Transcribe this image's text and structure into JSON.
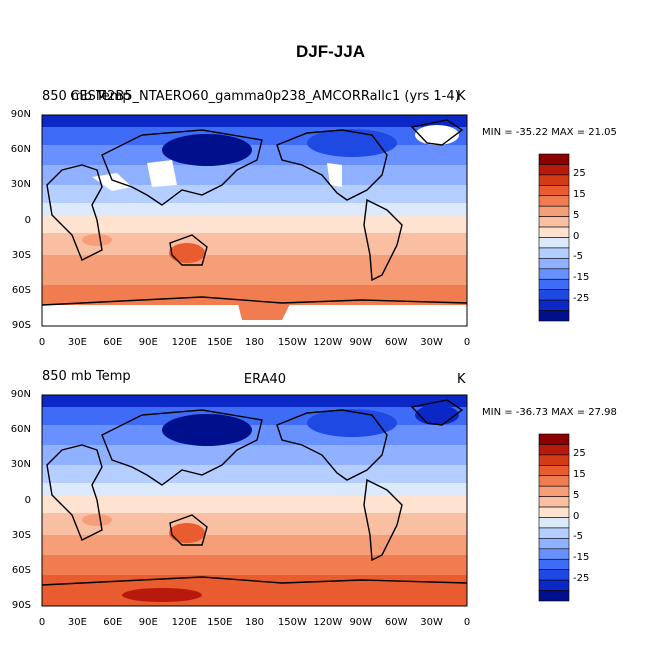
{
  "title": "DJF-JJA",
  "panels": [
    {
      "left_label": "850 mb Temp",
      "center_label": "CESM2B5_NTAERO60_gamma0p238_AMCORRallc1 (yrs 1-4)",
      "units": "K",
      "minmax": "MIN = -35.22  MAX =  21.05"
    },
    {
      "left_label": "850 mb Temp",
      "center_label": "ERA40",
      "units": "K",
      "minmax": "MIN = -36.73  MAX =  27.98"
    }
  ],
  "lon_ticks": [
    "0",
    "30E",
    "60E",
    "90E",
    "120E",
    "150E",
    "180",
    "150W",
    "120W",
    "90W",
    "60W",
    "30W",
    "0"
  ],
  "lat_ticks": [
    "90N",
    "60N",
    "30N",
    "0",
    "30S",
    "60S",
    "90S"
  ],
  "colorbar": {
    "labels": [
      "25",
      "15",
      "5",
      "0",
      "-5",
      "-15",
      "-25"
    ],
    "colors": [
      "#8b0000",
      "#b71a0c",
      "#d33a16",
      "#e85c30",
      "#f07c50",
      "#f59e78",
      "#f8bfa3",
      "#fde3d0",
      "#dbe9fb",
      "#b4ceff",
      "#8fb1ff",
      "#6890ff",
      "#3f6cf6",
      "#1f49e3",
      "#0b27c6",
      "#000f8c"
    ]
  }
}
